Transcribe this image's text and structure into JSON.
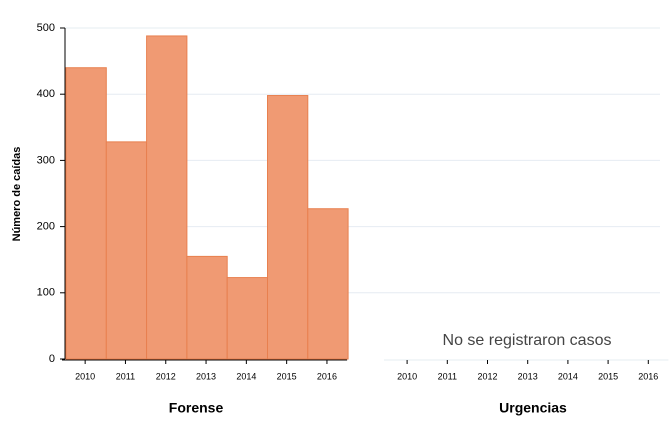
{
  "chart_data": [
    {
      "type": "bar",
      "xlabel": "Forense",
      "ylabel": "Número de caídas",
      "categories": [
        "2010",
        "2011",
        "2012",
        "2013",
        "2014",
        "2015",
        "2016"
      ],
      "values": [
        440,
        328,
        488,
        155,
        123,
        398,
        227
      ],
      "color": "#f09a73",
      "ylim": [
        0,
        500
      ],
      "yticks": [
        0,
        100,
        200,
        300,
        400,
        500
      ],
      "grid": true
    },
    {
      "type": "bar",
      "xlabel": "Urgencias",
      "categories": [
        "2010",
        "2011",
        "2012",
        "2013",
        "2014",
        "2015",
        "2016"
      ],
      "annotation": "No se  registraron casos"
    }
  ]
}
